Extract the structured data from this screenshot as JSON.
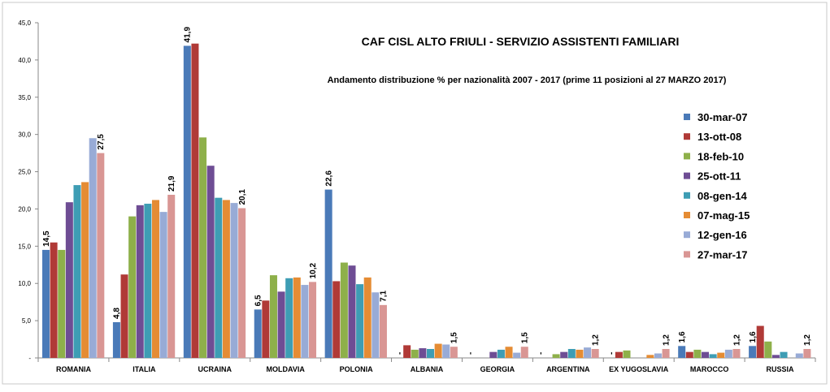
{
  "chart_data": {
    "type": "bar",
    "title": "CAF CISL ALTO FRIULI - SERVIZIO ASSISTENTI FAMILIARI",
    "subtitle": "Andamento distribuzione % per nazionalità 2007 - 2017 (prime 11 posizioni al 27 MARZO 2017)",
    "xlabel": "",
    "ylabel": "",
    "ylim": [
      0,
      45
    ],
    "yticks": [
      "-",
      "5,0",
      "10,0",
      "15,0",
      "20,0",
      "25,0",
      "30,0",
      "35,0",
      "40,0",
      "45,0"
    ],
    "grid": false,
    "legend_position": "right",
    "categories": [
      "ROMANIA",
      "ITALIA",
      "UCRAINA",
      "MOLDAVIA",
      "POLONIA",
      "ALBANIA",
      "GEORGIA",
      "ARGENTINA",
      "EX YUGOSLAVIA",
      "MAROCCO",
      "RUSSIA"
    ],
    "series": [
      {
        "name": "30-mar-07",
        "color": "#4a7ab8",
        "values": [
          14.5,
          4.8,
          41.9,
          6.5,
          22.6,
          0,
          0,
          0,
          0,
          1.6,
          1.6
        ]
      },
      {
        "name": "13-ott-08",
        "color": "#b03a37",
        "values": [
          15.5,
          11.2,
          42.2,
          7.7,
          10.3,
          1.7,
          0,
          0,
          0.8,
          0.8,
          4.3
        ]
      },
      {
        "name": "18-feb-10",
        "color": "#8eb04a",
        "values": [
          14.5,
          19.0,
          29.6,
          11.1,
          12.8,
          1.1,
          0,
          0.5,
          1.0,
          1.1,
          2.2
        ]
      },
      {
        "name": "25-ott-11",
        "color": "#6e4d94",
        "values": [
          20.9,
          20.5,
          25.8,
          8.9,
          12.4,
          1.3,
          0.8,
          0.8,
          0,
          0.8,
          0.4
        ]
      },
      {
        "name": "08-gen-14",
        "color": "#3e9db4",
        "values": [
          23.2,
          20.7,
          21.5,
          10.7,
          9.9,
          1.2,
          1.1,
          1.2,
          0,
          0.5,
          0.8
        ]
      },
      {
        "name": "07-mag-15",
        "color": "#e58c34",
        "values": [
          23.6,
          21.2,
          21.2,
          10.8,
          10.8,
          1.9,
          1.5,
          1.1,
          0.4,
          0.7,
          0
        ]
      },
      {
        "name": "12-gen-16",
        "color": "#98abd6",
        "values": [
          29.5,
          19.6,
          20.8,
          9.8,
          8.8,
          1.8,
          0.7,
          1.4,
          0.6,
          1.1,
          0.6
        ]
      },
      {
        "name": "27-mar-17",
        "color": "#d99694",
        "values": [
          27.5,
          21.9,
          20.1,
          10.2,
          7.1,
          1.5,
          1.5,
          1.2,
          1.2,
          1.2,
          1.2
        ]
      }
    ],
    "data_labels": [
      {
        "category": 0,
        "series": 0,
        "text": "14,5"
      },
      {
        "category": 0,
        "series": 7,
        "text": "27,5"
      },
      {
        "category": 1,
        "series": 0,
        "text": "4,8"
      },
      {
        "category": 1,
        "series": 7,
        "text": "21,9"
      },
      {
        "category": 2,
        "series": 0,
        "text": "41,9"
      },
      {
        "category": 2,
        "series": 7,
        "text": "20,1"
      },
      {
        "category": 3,
        "series": 0,
        "text": "6,5"
      },
      {
        "category": 3,
        "series": 7,
        "text": "10,2"
      },
      {
        "category": 4,
        "series": 0,
        "text": "22,6"
      },
      {
        "category": 4,
        "series": 7,
        "text": "7,1"
      },
      {
        "category": 5,
        "series": 0,
        "text": "-"
      },
      {
        "category": 5,
        "series": 7,
        "text": "1,5"
      },
      {
        "category": 6,
        "series": 0,
        "text": "-"
      },
      {
        "category": 6,
        "series": 7,
        "text": "1,5"
      },
      {
        "category": 7,
        "series": 0,
        "text": "-"
      },
      {
        "category": 7,
        "series": 7,
        "text": "1,2"
      },
      {
        "category": 8,
        "series": 0,
        "text": "-"
      },
      {
        "category": 8,
        "series": 7,
        "text": "1,2"
      },
      {
        "category": 9,
        "series": 0,
        "text": "1,6"
      },
      {
        "category": 9,
        "series": 7,
        "text": "1,2"
      },
      {
        "category": 10,
        "series": 0,
        "text": "1,6"
      },
      {
        "category": 10,
        "series": 7,
        "text": "1,2"
      }
    ]
  }
}
